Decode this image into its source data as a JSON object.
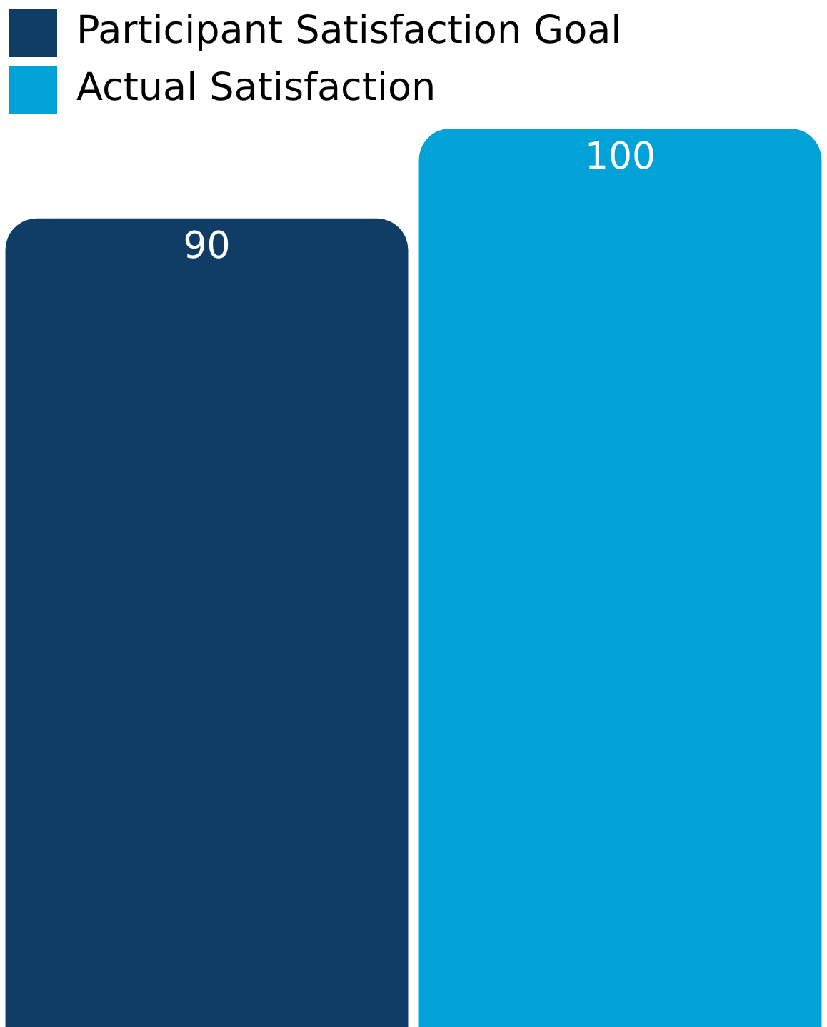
{
  "chart_data": {
    "type": "bar",
    "categories": [
      null
    ],
    "series": [
      {
        "name": "Participant Satisfaction Goal",
        "color": "#0f3d66",
        "values": [
          90
        ]
      },
      {
        "name": "Actual Satisfaction",
        "color": "#00a2d8",
        "values": [
          100
        ]
      }
    ],
    "ylim": [
      0,
      100
    ],
    "legend": "top left",
    "data_labels": true
  }
}
